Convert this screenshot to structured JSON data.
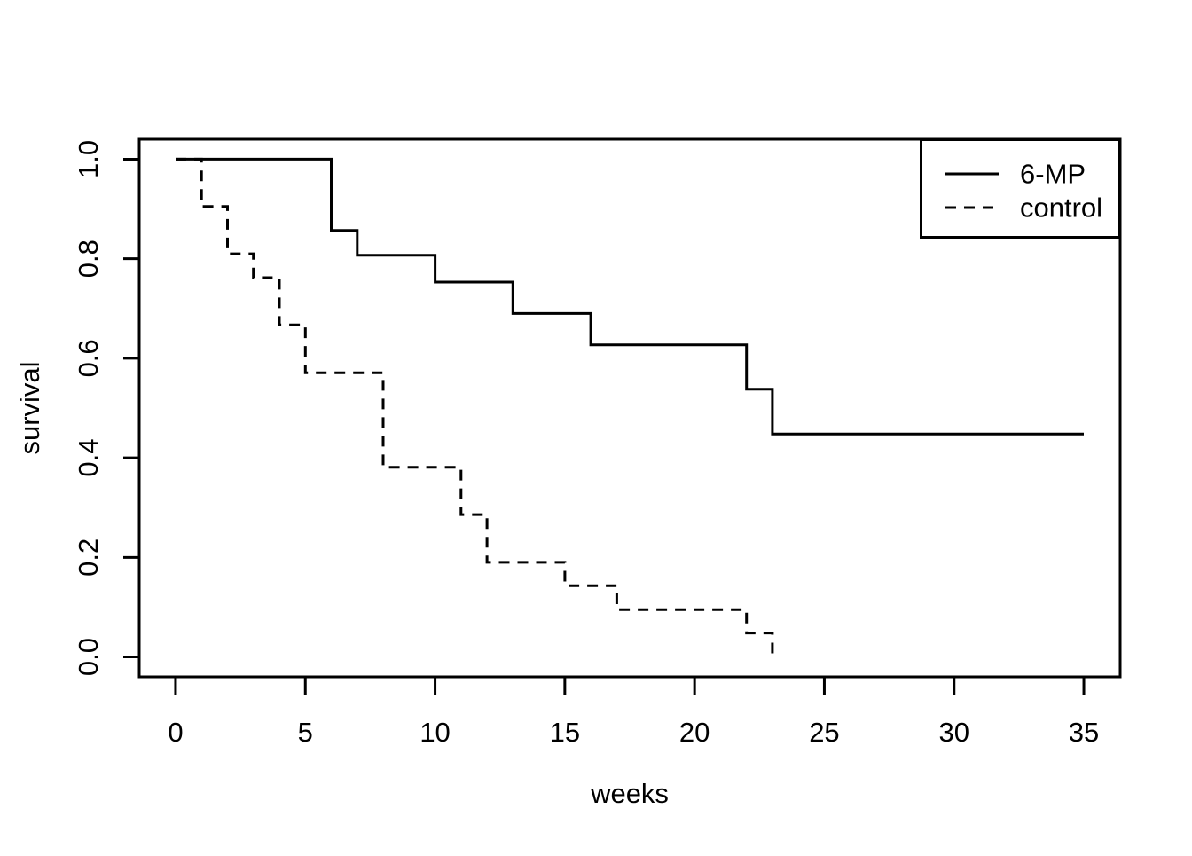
{
  "figure": {
    "background_color": "#ffffff",
    "foreground_color": "#000000"
  },
  "chart_data": {
    "type": "line",
    "subtype": "kaplan-meier-step",
    "title": "",
    "xlabel": "weeks",
    "ylabel": "survival",
    "xlim": [
      0,
      35
    ],
    "ylim": [
      0,
      1
    ],
    "grid": false,
    "x_ticks": [
      {
        "label": "0",
        "value": 0
      },
      {
        "label": "5",
        "value": 5
      },
      {
        "label": "10",
        "value": 10
      },
      {
        "label": "15",
        "value": 15
      },
      {
        "label": "20",
        "value": 20
      },
      {
        "label": "25",
        "value": 25
      },
      {
        "label": "30",
        "value": 30
      },
      {
        "label": "35",
        "value": 35
      }
    ],
    "y_ticks": [
      {
        "label": "0.0",
        "value": 0.0
      },
      {
        "label": "0.2",
        "value": 0.2
      },
      {
        "label": "0.4",
        "value": 0.4
      },
      {
        "label": "0.6",
        "value": 0.6
      },
      {
        "label": "0.8",
        "value": 0.8
      },
      {
        "label": "1.0",
        "value": 1.0
      }
    ],
    "legend": {
      "position": "topright",
      "entries": [
        {
          "label": "6-MP",
          "line_style": "solid"
        },
        {
          "label": "control",
          "line_style": "dashed"
        }
      ]
    },
    "series": [
      {
        "name": "6-MP",
        "line_style": "solid",
        "color": "#000000",
        "times": [
          0,
          6,
          7,
          10,
          13,
          16,
          22,
          23
        ],
        "survival": [
          1.0,
          0.857,
          0.807,
          0.753,
          0.69,
          0.627,
          0.538,
          0.448
        ],
        "end_time": 35
      },
      {
        "name": "control",
        "line_style": "dashed",
        "color": "#000000",
        "times": [
          0,
          1,
          2,
          3,
          4,
          5,
          8,
          11,
          12,
          15,
          17,
          22,
          23
        ],
        "survival": [
          1.0,
          0.905,
          0.81,
          0.762,
          0.667,
          0.571,
          0.381,
          0.286,
          0.19,
          0.143,
          0.095,
          0.048,
          0.0
        ],
        "end_time": 23
      }
    ]
  }
}
